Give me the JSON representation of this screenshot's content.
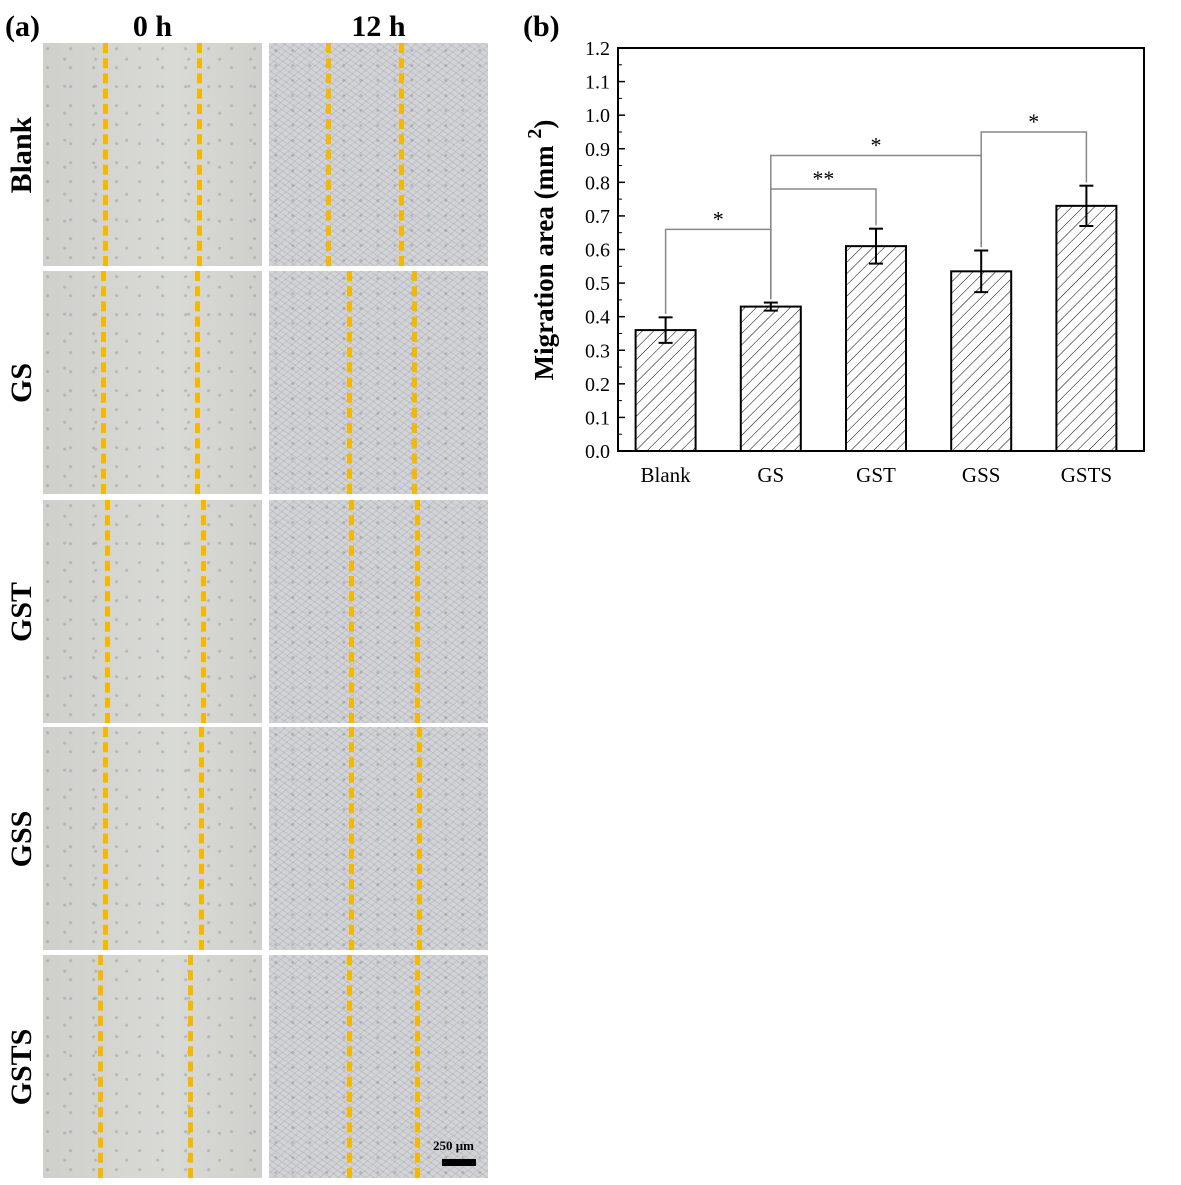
{
  "panel_a": {
    "label": "(a)",
    "columns": [
      "0 h",
      "12 h"
    ],
    "rows": [
      "Blank",
      "GS",
      "GST",
      "GSS",
      "GSTS"
    ],
    "scale_bar": "250 μm",
    "marker_color": "#f5b800"
  },
  "panel_b": {
    "label": "(b)"
  },
  "chart_data": {
    "type": "bar",
    "categories": [
      "Blank",
      "GS",
      "GST",
      "GSS",
      "GSTS"
    ],
    "values": [
      0.36,
      0.43,
      0.61,
      0.535,
      0.73
    ],
    "errors": [
      0.038,
      0.012,
      0.052,
      0.062,
      0.06
    ],
    "xlabel": "",
    "ylabel": "Migration area (mm²)",
    "ylim": [
      0.0,
      1.2
    ],
    "yticks": [
      "0.0",
      "0.1",
      "0.2",
      "0.3",
      "0.4",
      "0.5",
      "0.6",
      "0.7",
      "0.8",
      "0.9",
      "1.0",
      "1.1",
      "1.2"
    ],
    "bar_fill": "diagonal hatch",
    "significance": [
      {
        "from": "Blank",
        "to": "GS",
        "label": "*",
        "level": 0.66
      },
      {
        "from": "GS",
        "to": "GST",
        "label": "**",
        "level": 0.78
      },
      {
        "from": "GS",
        "to": "GSS",
        "label": "*",
        "level": 0.88
      },
      {
        "from": "GSS",
        "to": "GSTS",
        "label": "*",
        "level": 0.95
      }
    ]
  }
}
